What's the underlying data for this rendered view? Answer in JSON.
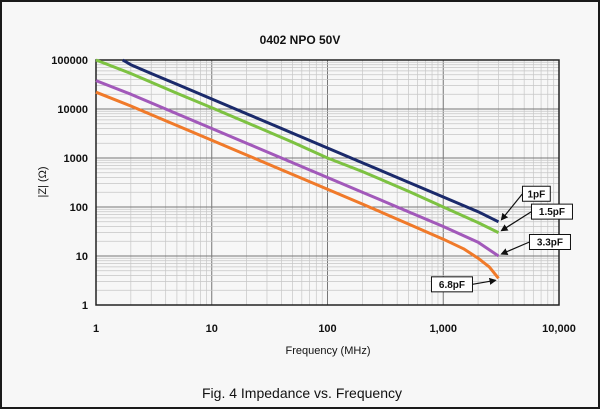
{
  "chart_data": {
    "type": "line",
    "title": "0402 NPO 50V",
    "xlabel": "Frequency (MHz)",
    "ylabel": "|Z| (Ω)",
    "caption": "Fig. 4 Impedance vs. Frequency",
    "x_scale": "log",
    "y_scale": "log",
    "xlim": [
      1,
      10000
    ],
    "ylim": [
      1,
      100000
    ],
    "x_ticks": [
      "1",
      "10",
      "100",
      "1,000",
      "10,000"
    ],
    "y_ticks": [
      "1",
      "10",
      "100",
      "1000",
      "10000",
      "100000"
    ],
    "grid": true,
    "series": [
      {
        "name": "1pF",
        "color": "#1b2a6b",
        "x": [
          1.7,
          2,
          3,
          5,
          10,
          20,
          50,
          100,
          200,
          500,
          1000,
          2000,
          3000
        ],
        "y": [
          100000,
          80000,
          53000,
          32000,
          16000,
          8000,
          3200,
          1600,
          800,
          320,
          160,
          80,
          50
        ]
      },
      {
        "name": "1.5pF",
        "color": "#7dc242",
        "x": [
          1,
          2,
          5,
          10,
          20,
          50,
          100,
          200,
          500,
          1000,
          2000,
          3000
        ],
        "y": [
          100000,
          53000,
          21000,
          10600,
          5300,
          2100,
          1000,
          530,
          210,
          100,
          48,
          30
        ]
      },
      {
        "name": "3.3pF",
        "color": "#a259ba",
        "x": [
          1,
          2,
          5,
          10,
          20,
          50,
          100,
          200,
          500,
          1000,
          2000,
          3000
        ],
        "y": [
          38000,
          20000,
          8000,
          4000,
          2000,
          800,
          400,
          200,
          80,
          40,
          19,
          10
        ]
      },
      {
        "name": "6.8pF",
        "color": "#f07a2a",
        "x": [
          1,
          2,
          5,
          10,
          20,
          50,
          100,
          200,
          500,
          1000,
          1500,
          2000,
          2500,
          3000
        ],
        "y": [
          22000,
          11500,
          4600,
          2300,
          1150,
          460,
          230,
          115,
          45,
          22,
          14,
          9,
          6,
          3.5
        ]
      }
    ],
    "annotations": [
      {
        "text": "1pF",
        "series": "1pF"
      },
      {
        "text": "1.5pF",
        "series": "1.5pF"
      },
      {
        "text": "3.3pF",
        "series": "3.3pF"
      },
      {
        "text": "6.8pF",
        "series": "6.8pF"
      }
    ]
  }
}
